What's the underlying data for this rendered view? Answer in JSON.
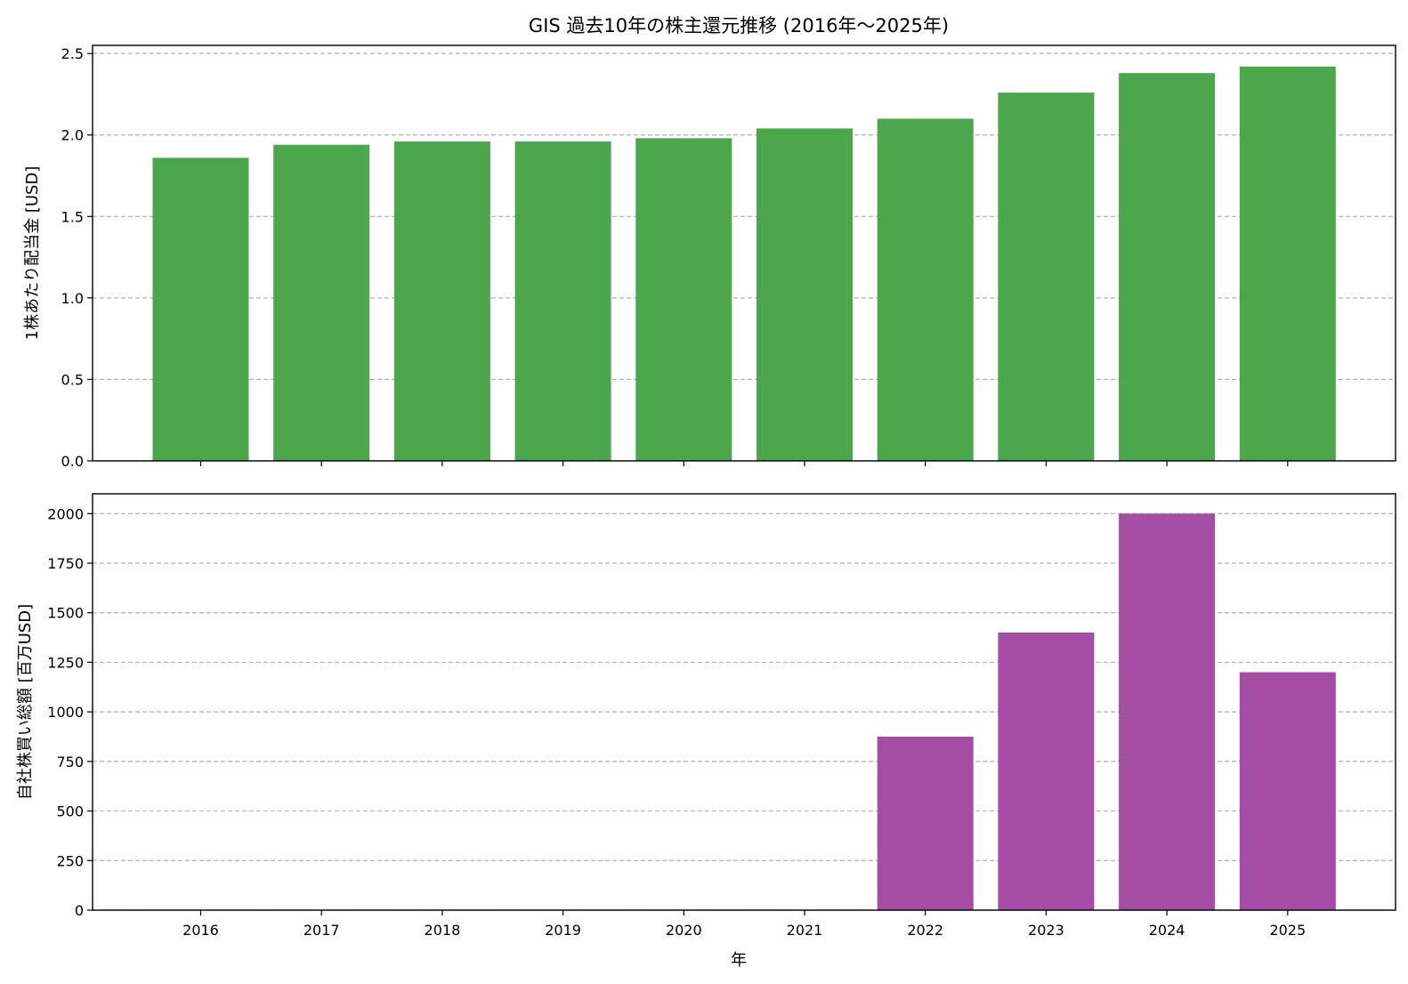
{
  "chart_data": {
    "title": "GIS 過去10年の株主還元推移 (2016年～2025年)",
    "xlabel": "年",
    "categories": [
      "2016",
      "2017",
      "2018",
      "2019",
      "2020",
      "2021",
      "2022",
      "2023",
      "2024",
      "2025"
    ],
    "panels": [
      {
        "type": "bar",
        "ylabel": "1株あたり配当金 [USD]",
        "ylim": [
          0,
          2.55
        ],
        "yticks": [
          0.0,
          0.5,
          1.0,
          1.5,
          2.0,
          2.5
        ],
        "ytick_labels": [
          "0.0",
          "0.5",
          "1.0",
          "1.5",
          "2.0",
          "2.5"
        ],
        "grid": "y-dashed",
        "color": "#4ca64c",
        "values": [
          1.86,
          1.94,
          1.96,
          1.96,
          1.98,
          2.04,
          2.1,
          2.26,
          2.38,
          2.42
        ]
      },
      {
        "type": "bar",
        "ylabel": "自社株買い総額 [百万USD]",
        "ylim": [
          0,
          2100
        ],
        "yticks": [
          0,
          250,
          500,
          750,
          1000,
          1250,
          1500,
          1750,
          2000
        ],
        "ytick_labels": [
          "0",
          "250",
          "500",
          "750",
          "1000",
          "1250",
          "1500",
          "1750",
          "2000"
        ],
        "grid": "y-dashed",
        "color": "#a54ca5",
        "values": [
          0,
          0,
          0,
          0,
          0,
          0,
          875,
          1400,
          2000,
          1200
        ]
      }
    ]
  }
}
